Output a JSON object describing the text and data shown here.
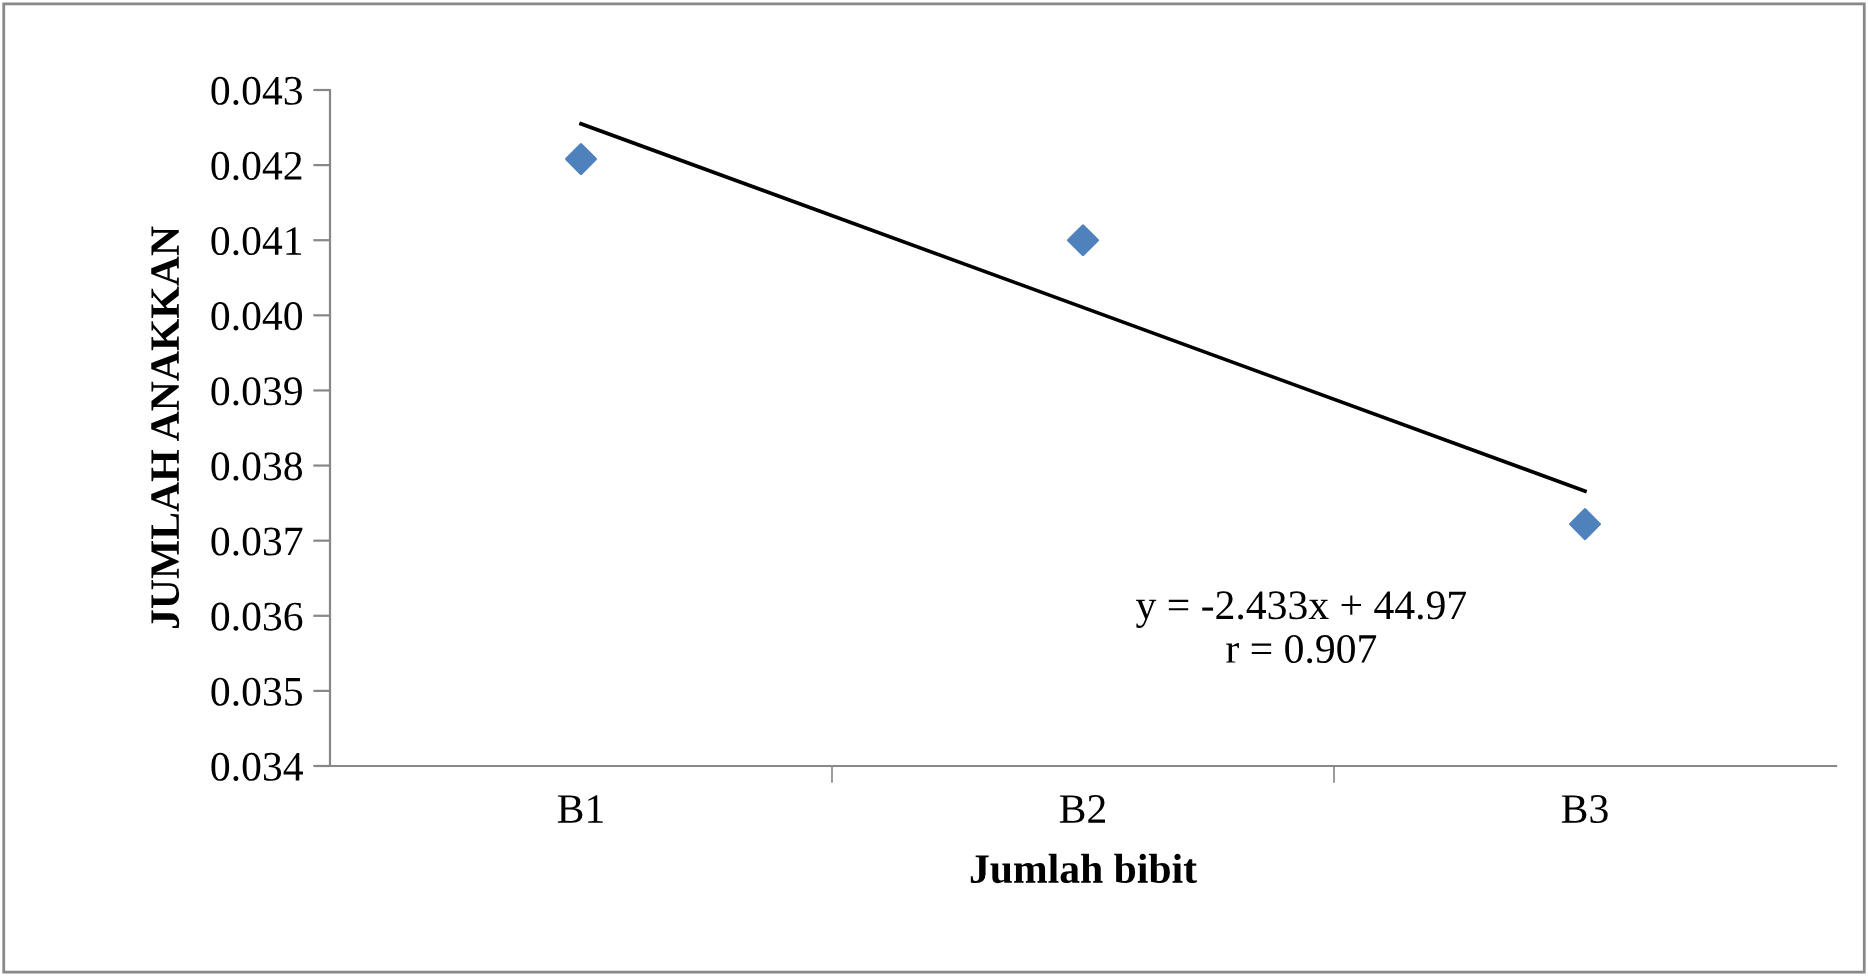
{
  "chart_data": {
    "type": "scatter",
    "xlabel": "Jumlah bibit",
    "ylabel": "JUMLAH ANAKKAN",
    "categories": [
      "B1",
      "B2",
      "B3"
    ],
    "series": [
      {
        "color": "#4f81bd",
        "marker": "diamond",
        "values": [
          0.04208,
          0.041,
          0.03722
        ]
      },
      {
        "type": "line",
        "color": "#000000",
        "x": [
          "B1",
          "B3"
        ],
        "values": [
          0.04255,
          0.03766
        ],
        "line_style": "solid"
      }
    ],
    "ylim": [
      0.034,
      0.043
    ],
    "yticks": [
      {
        "value": 0.034,
        "label": "0.034"
      },
      {
        "value": 0.035,
        "label": "0.035"
      },
      {
        "value": 0.036,
        "label": "0.036"
      },
      {
        "value": 0.037,
        "label": "0.037"
      },
      {
        "value": 0.038,
        "label": "0.038"
      },
      {
        "value": 0.039,
        "label": "0.039"
      },
      {
        "value": 0.04,
        "label": "0.040"
      },
      {
        "value": 0.041,
        "label": "0.041"
      },
      {
        "value": 0.042,
        "label": "0.042"
      },
      {
        "value": 0.043,
        "label": "0.043"
      }
    ],
    "annotations": [
      "y = -2.433x + 44.97",
      "r = 0.907"
    ],
    "grid": false,
    "legend": false
  }
}
